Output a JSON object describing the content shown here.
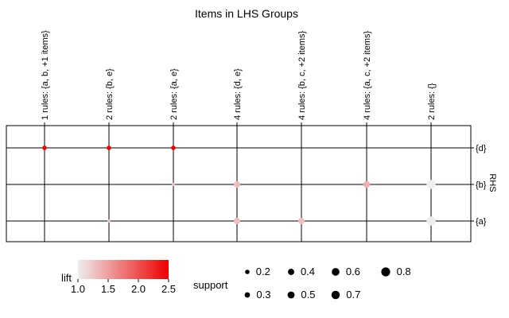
{
  "chart_data": {
    "type": "scatter",
    "title": "Items in LHS Groups",
    "xlabel": "",
    "ylabel": "RHS",
    "x_categories": [
      "1 rules: {a, b, +1 items}",
      "2 rules: {b, e}",
      "2 rules: {a, e}",
      "4 rules: {d, e}",
      "4 rules: {b, c, +2 items}",
      "4 rules: {a, c, +2 items}",
      "2 rules: {}"
    ],
    "y_categories": [
      "{d}",
      "{b}",
      "{a}"
    ],
    "points": [
      {
        "x": "1 rules: {a, b, +1 items}",
        "y": "{d}",
        "lift": 2.5,
        "support": 0.2
      },
      {
        "x": "2 rules: {b, e}",
        "y": "{d}",
        "lift": 2.5,
        "support": 0.2
      },
      {
        "x": "2 rules: {a, e}",
        "y": "{d}",
        "lift": 2.5,
        "support": 0.2
      },
      {
        "x": "2 rules: {a, e}",
        "y": "{b}",
        "lift": 1.3,
        "support": 0.1
      },
      {
        "x": "4 rules: {d, e}",
        "y": "{b}",
        "lift": 1.3,
        "support": 0.4
      },
      {
        "x": "4 rules: {a, c, +2 items}",
        "y": "{b}",
        "lift": 1.4,
        "support": 0.45
      },
      {
        "x": "2 rules: {}",
        "y": "{b}",
        "lift": 1.0,
        "support": 0.8
      },
      {
        "x": "2 rules: {b, e}",
        "y": "{a}",
        "lift": 1.3,
        "support": 0.1
      },
      {
        "x": "4 rules: {d, e}",
        "y": "{a}",
        "lift": 1.3,
        "support": 0.4
      },
      {
        "x": "4 rules: {b, c, +2 items}",
        "y": "{a}",
        "lift": 1.3,
        "support": 0.4
      },
      {
        "x": "2 rules: {}",
        "y": "{a}",
        "lift": 1.0,
        "support": 0.8
      }
    ],
    "color_scale": {
      "title": "lift",
      "min": 1.0,
      "max": 2.5,
      "ticks": [
        "1.0",
        "1.5",
        "2.0",
        "2.5"
      ],
      "low_color": "#eeeeee",
      "high_color": "#ee0000"
    },
    "size_scale": {
      "title": "support",
      "values": [
        0.2,
        0.3,
        0.4,
        0.5,
        0.6,
        0.7,
        0.8
      ],
      "labels": [
        "0.2",
        "0.3",
        "0.4",
        "0.5",
        "0.6",
        "0.7",
        "0.8"
      ]
    },
    "grid": true
  }
}
